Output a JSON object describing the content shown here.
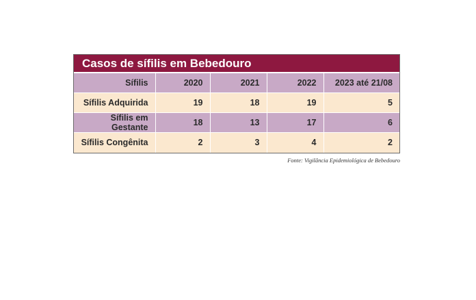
{
  "title": "Casos de sífilis em Bebedouro",
  "table": {
    "header": [
      "Sífilis",
      "2020",
      "2021",
      "2022",
      "2023 até 21/08"
    ],
    "rows": [
      [
        "Sífilis Adquirida",
        19,
        18,
        19,
        5
      ],
      [
        "Sífilis em Gestante",
        18,
        13,
        17,
        6
      ],
      [
        "Sífilis Congênita",
        2,
        3,
        4,
        2
      ]
    ]
  },
  "source": "Fonte: Vigilância Epidemiológica de Bebedouro"
}
